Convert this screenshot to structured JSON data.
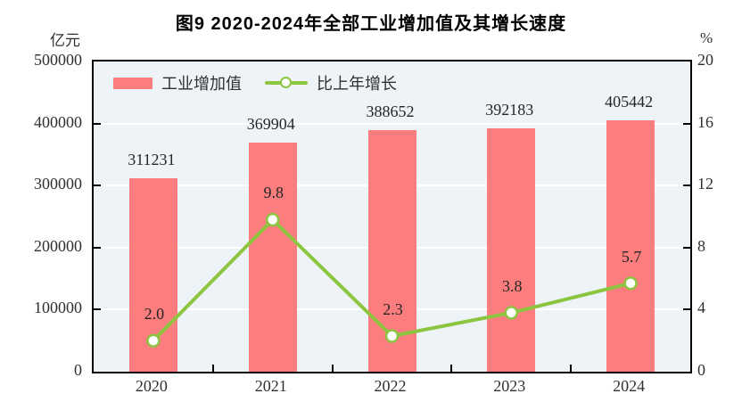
{
  "title": "图9  2020-2024年全部工业增加值及其增长速度",
  "legend": {
    "bar_label": "工业增加值",
    "line_label": "比上年增长"
  },
  "colors": {
    "bar": "#FB7D7D",
    "line": "#8CC540",
    "marker_fill": "#FFFFFF",
    "plot_background": "#EDF3F7",
    "gridline": "#FFFFFF",
    "axis": "#000000",
    "text": "#303030"
  },
  "chart_data": {
    "type": "bar",
    "subtype": "bar+line combo, dual axis",
    "title": "图9  2020-2024年全部工业增加值及其增长速度",
    "categories": [
      "2020",
      "2021",
      "2022",
      "2023",
      "2024"
    ],
    "series": [
      {
        "name": "工业增加值",
        "type": "bar",
        "axis": "left",
        "values": [
          311231,
          369904,
          388652,
          392183,
          405442
        ],
        "data_labels": [
          "311231",
          "369904",
          "388652",
          "392183",
          "405442"
        ]
      },
      {
        "name": "比上年增长",
        "type": "line",
        "axis": "right",
        "values": [
          2.0,
          9.8,
          2.3,
          3.8,
          5.7
        ],
        "data_labels": [
          "2.0",
          "9.8",
          "2.3",
          "3.8",
          "5.7"
        ]
      }
    ],
    "left_axis": {
      "unit": "亿元",
      "range": [
        0,
        500000
      ],
      "ticks": [
        500000,
        400000,
        300000,
        200000,
        100000,
        0
      ]
    },
    "right_axis": {
      "unit": "%",
      "range": [
        0,
        20
      ],
      "ticks": [
        20,
        16,
        12,
        8,
        4,
        0
      ]
    },
    "grid": true,
    "legend_position": "top-left-inside"
  }
}
